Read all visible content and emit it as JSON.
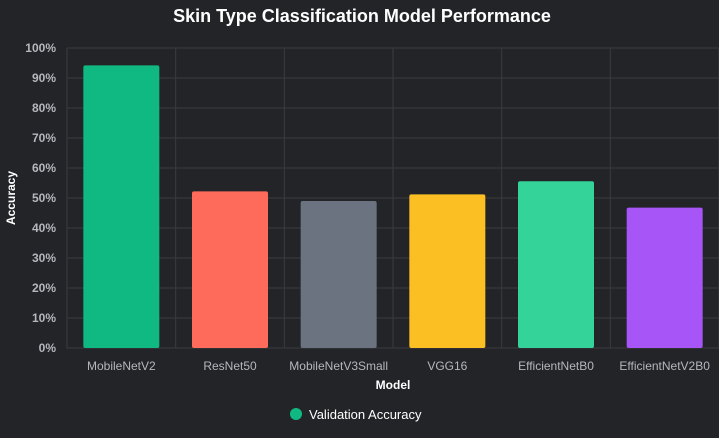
{
  "chart_data": {
    "type": "bar",
    "title": "Skin Type Classification Model Performance",
    "xlabel": "Model",
    "ylabel": "Accuracy",
    "categories": [
      "MobileNetV2",
      "ResNet50",
      "MobileNetV3Small",
      "VGG16",
      "EfficientNetB0",
      "EfficientNetV2B0"
    ],
    "series": [
      {
        "name": "Validation Accuracy",
        "values": [
          94.2,
          52.2,
          49.0,
          51.2,
          55.6,
          46.8
        ]
      }
    ],
    "bar_colors": [
      "#10b981",
      "#ff6b5b",
      "#6b7280",
      "#fbbf24",
      "#34d399",
      "#a855f7"
    ],
    "legend_color": "#10b981",
    "ylim": [
      0,
      100
    ],
    "yticks": [
      0,
      10,
      20,
      30,
      40,
      50,
      60,
      70,
      80,
      90,
      100
    ],
    "ytick_labels": [
      "0%",
      "10%",
      "20%",
      "30%",
      "40%",
      "50%",
      "60%",
      "70%",
      "80%",
      "90%",
      "100%"
    ],
    "grid": true,
    "legend_position": "bottom"
  }
}
